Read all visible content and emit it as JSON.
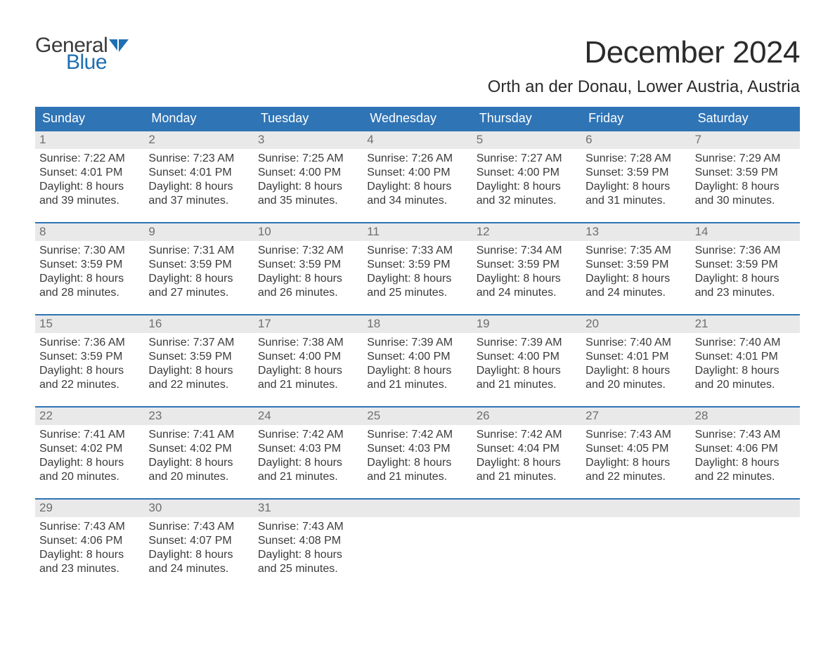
{
  "logo": {
    "word1": "General",
    "word2": "Blue",
    "word1_color": "#3a3a3a",
    "word2_color": "#1f6fb2"
  },
  "title": "December 2024",
  "location": "Orth an der Donau, Lower Austria, Austria",
  "colors": {
    "header_bg": "#2f74b5",
    "header_text": "#ffffff",
    "week_rule": "#2f74b5",
    "daynum_bg": "#e9e9e9",
    "daynum_text": "#6f6f6f",
    "body_text": "#3a3a3a",
    "page_bg": "#ffffff"
  },
  "typography": {
    "title_fontsize": 44,
    "location_fontsize": 24,
    "dow_fontsize": 18,
    "daynum_fontsize": 17,
    "body_fontsize": 16,
    "logo_fontsize": 30
  },
  "labels": {
    "sunrise": "Sunrise",
    "sunset": "Sunset",
    "daylight": "Daylight"
  },
  "days_of_week": [
    "Sunday",
    "Monday",
    "Tuesday",
    "Wednesday",
    "Thursday",
    "Friday",
    "Saturday"
  ],
  "weeks": [
    [
      {
        "day": 1,
        "sunrise": "7:22 AM",
        "sunset": "4:01 PM",
        "daylight": "8 hours and 39 minutes."
      },
      {
        "day": 2,
        "sunrise": "7:23 AM",
        "sunset": "4:01 PM",
        "daylight": "8 hours and 37 minutes."
      },
      {
        "day": 3,
        "sunrise": "7:25 AM",
        "sunset": "4:00 PM",
        "daylight": "8 hours and 35 minutes."
      },
      {
        "day": 4,
        "sunrise": "7:26 AM",
        "sunset": "4:00 PM",
        "daylight": "8 hours and 34 minutes."
      },
      {
        "day": 5,
        "sunrise": "7:27 AM",
        "sunset": "4:00 PM",
        "daylight": "8 hours and 32 minutes."
      },
      {
        "day": 6,
        "sunrise": "7:28 AM",
        "sunset": "3:59 PM",
        "daylight": "8 hours and 31 minutes."
      },
      {
        "day": 7,
        "sunrise": "7:29 AM",
        "sunset": "3:59 PM",
        "daylight": "8 hours and 30 minutes."
      }
    ],
    [
      {
        "day": 8,
        "sunrise": "7:30 AM",
        "sunset": "3:59 PM",
        "daylight": "8 hours and 28 minutes."
      },
      {
        "day": 9,
        "sunrise": "7:31 AM",
        "sunset": "3:59 PM",
        "daylight": "8 hours and 27 minutes."
      },
      {
        "day": 10,
        "sunrise": "7:32 AM",
        "sunset": "3:59 PM",
        "daylight": "8 hours and 26 minutes."
      },
      {
        "day": 11,
        "sunrise": "7:33 AM",
        "sunset": "3:59 PM",
        "daylight": "8 hours and 25 minutes."
      },
      {
        "day": 12,
        "sunrise": "7:34 AM",
        "sunset": "3:59 PM",
        "daylight": "8 hours and 24 minutes."
      },
      {
        "day": 13,
        "sunrise": "7:35 AM",
        "sunset": "3:59 PM",
        "daylight": "8 hours and 24 minutes."
      },
      {
        "day": 14,
        "sunrise": "7:36 AM",
        "sunset": "3:59 PM",
        "daylight": "8 hours and 23 minutes."
      }
    ],
    [
      {
        "day": 15,
        "sunrise": "7:36 AM",
        "sunset": "3:59 PM",
        "daylight": "8 hours and 22 minutes."
      },
      {
        "day": 16,
        "sunrise": "7:37 AM",
        "sunset": "3:59 PM",
        "daylight": "8 hours and 22 minutes."
      },
      {
        "day": 17,
        "sunrise": "7:38 AM",
        "sunset": "4:00 PM",
        "daylight": "8 hours and 21 minutes."
      },
      {
        "day": 18,
        "sunrise": "7:39 AM",
        "sunset": "4:00 PM",
        "daylight": "8 hours and 21 minutes."
      },
      {
        "day": 19,
        "sunrise": "7:39 AM",
        "sunset": "4:00 PM",
        "daylight": "8 hours and 21 minutes."
      },
      {
        "day": 20,
        "sunrise": "7:40 AM",
        "sunset": "4:01 PM",
        "daylight": "8 hours and 20 minutes."
      },
      {
        "day": 21,
        "sunrise": "7:40 AM",
        "sunset": "4:01 PM",
        "daylight": "8 hours and 20 minutes."
      }
    ],
    [
      {
        "day": 22,
        "sunrise": "7:41 AM",
        "sunset": "4:02 PM",
        "daylight": "8 hours and 20 minutes."
      },
      {
        "day": 23,
        "sunrise": "7:41 AM",
        "sunset": "4:02 PM",
        "daylight": "8 hours and 20 minutes."
      },
      {
        "day": 24,
        "sunrise": "7:42 AM",
        "sunset": "4:03 PM",
        "daylight": "8 hours and 21 minutes."
      },
      {
        "day": 25,
        "sunrise": "7:42 AM",
        "sunset": "4:03 PM",
        "daylight": "8 hours and 21 minutes."
      },
      {
        "day": 26,
        "sunrise": "7:42 AM",
        "sunset": "4:04 PM",
        "daylight": "8 hours and 21 minutes."
      },
      {
        "day": 27,
        "sunrise": "7:43 AM",
        "sunset": "4:05 PM",
        "daylight": "8 hours and 22 minutes."
      },
      {
        "day": 28,
        "sunrise": "7:43 AM",
        "sunset": "4:06 PM",
        "daylight": "8 hours and 22 minutes."
      }
    ],
    [
      {
        "day": 29,
        "sunrise": "7:43 AM",
        "sunset": "4:06 PM",
        "daylight": "8 hours and 23 minutes."
      },
      {
        "day": 30,
        "sunrise": "7:43 AM",
        "sunset": "4:07 PM",
        "daylight": "8 hours and 24 minutes."
      },
      {
        "day": 31,
        "sunrise": "7:43 AM",
        "sunset": "4:08 PM",
        "daylight": "8 hours and 25 minutes."
      },
      null,
      null,
      null,
      null
    ]
  ]
}
